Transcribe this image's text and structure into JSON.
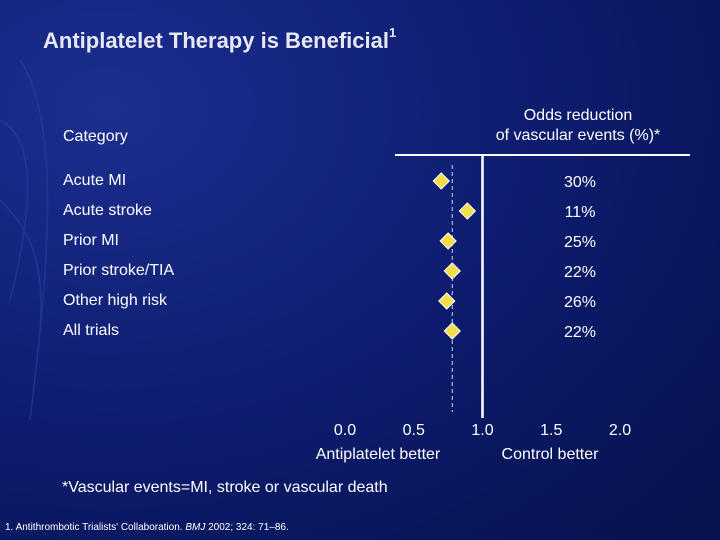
{
  "chart_data": {
    "type": "forest",
    "title": "Antiplatelet Therapy is Beneficial",
    "title_superscript": "1",
    "category_header": "Category",
    "value_header": [
      "Odds reduction",
      "of vascular events (%)*"
    ],
    "categories": [
      "Acute MI",
      "Acute stroke",
      "Prior MI",
      "Prior stroke/TIA",
      "Other high risk",
      "All trials"
    ],
    "values": [
      0.7,
      0.89,
      0.75,
      0.78,
      0.74,
      0.78
    ],
    "reduction_labels": [
      "30%",
      "11%",
      "25%",
      "22%",
      "26%",
      "22%"
    ],
    "color": "#f2de4b",
    "xlim": [
      0,
      2
    ],
    "xticks": [
      {
        "value": 0,
        "label": "0.0"
      },
      {
        "value": 0.5,
        "label": "0.5"
      },
      {
        "value": 1,
        "label": "1.0"
      },
      {
        "value": 1.5,
        "label": "1.5"
      },
      {
        "value": 2,
        "label": "2.0"
      }
    ],
    "left_annotation": "Antiplatelet better",
    "right_annotation": "Control better",
    "footnote": "*Vascular events=MI, stroke or vascular death",
    "reference": {
      "prefix": "1. Antithrombotic Trialists' Collaboration. ",
      "journal": "BMJ",
      "suffix": " 2002; 324: 71–86."
    }
  }
}
